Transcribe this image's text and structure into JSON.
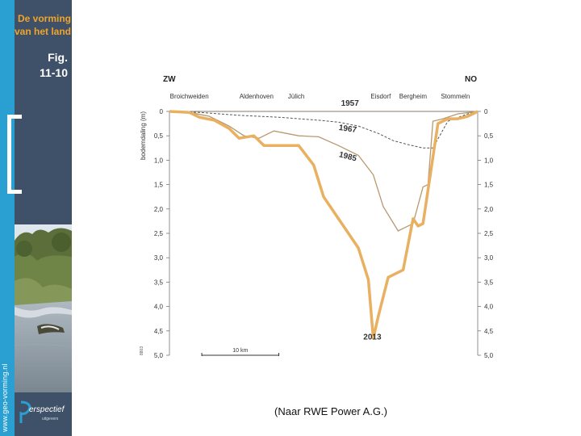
{
  "sidebar": {
    "header_line1": "De vorming",
    "header_line2": "van het land",
    "fig_line1": "Fig.",
    "fig_line2": "11-10",
    "url_vertical": "www.geo-vorming.nl",
    "logo_text": "erspectief",
    "logo_sub": "uitgevers"
  },
  "source_note": "(Naar RWE Power A.G.)",
  "chart_data": {
    "type": "line",
    "title": "",
    "direction_left": "ZW",
    "direction_right": "NO",
    "ylabel": "bodemdaling (m)",
    "ylim": [
      0,
      5
    ],
    "yticks": [
      "0",
      "0,5",
      "1,0",
      "1,5",
      "2,0",
      "2,5",
      "3,0",
      "3,5",
      "4,0",
      "4,5",
      "5,0"
    ],
    "xlim": [
      0,
      62
    ],
    "places": [
      {
        "name": "Broichweiden",
        "x": 4
      },
      {
        "name": "Aldenhoven",
        "x": 17.5
      },
      {
        "name": "Jülich",
        "x": 25.5
      },
      {
        "name": "Eisdorf",
        "x": 42.5
      },
      {
        "name": "Bergheim",
        "x": 49
      },
      {
        "name": "Stommeln",
        "x": 57.5
      }
    ],
    "scale_bar_label": "10 km",
    "scale_bar_km": 10,
    "corner_code": "8803",
    "series": [
      {
        "name": "1957",
        "style": "solid-thin",
        "x": [
          0,
          62
        ],
        "values": [
          0,
          0
        ]
      },
      {
        "name": "1967",
        "style": "dashed",
        "x": [
          0,
          6,
          10,
          14,
          18,
          22,
          26,
          30,
          34,
          38,
          42,
          45,
          48,
          51,
          53,
          56,
          60,
          62
        ],
        "values": [
          0,
          0.02,
          0.05,
          0.08,
          0.1,
          0.12,
          0.15,
          0.18,
          0.22,
          0.3,
          0.45,
          0.6,
          0.68,
          0.75,
          0.75,
          0.2,
          0.05,
          0
        ]
      },
      {
        "name": "1985",
        "style": "solid-thin",
        "x": [
          0,
          4,
          8,
          12,
          15,
          18,
          21,
          26,
          30,
          34,
          38,
          41,
          43,
          46,
          49,
          51,
          52,
          53,
          55,
          58,
          62
        ],
        "values": [
          0,
          0.02,
          0.1,
          0.3,
          0.5,
          0.55,
          0.4,
          0.5,
          0.52,
          0.7,
          0.9,
          1.3,
          1.95,
          2.45,
          2.3,
          1.55,
          1.5,
          0.2,
          0.15,
          0.05,
          0
        ]
      },
      {
        "name": "2013",
        "style": "solid-thick",
        "x": [
          0,
          4,
          6,
          9,
          12,
          14,
          17,
          19,
          22,
          26,
          29,
          31,
          35,
          38,
          40,
          41,
          42,
          44,
          47,
          49,
          50,
          51,
          54,
          56,
          58,
          60,
          62
        ],
        "values": [
          0,
          0.02,
          0.12,
          0.18,
          0.35,
          0.55,
          0.5,
          0.7,
          0.7,
          0.7,
          1.1,
          1.75,
          2.35,
          2.8,
          3.45,
          4.65,
          4.2,
          3.4,
          3.25,
          2.2,
          2.35,
          2.3,
          0.25,
          0.15,
          0.15,
          0.1,
          0
        ]
      }
    ],
    "colors": {
      "line_thin": "#b89870",
      "line_thick": "#e8b060",
      "dashed": "#555555",
      "axis": "#777777"
    }
  }
}
